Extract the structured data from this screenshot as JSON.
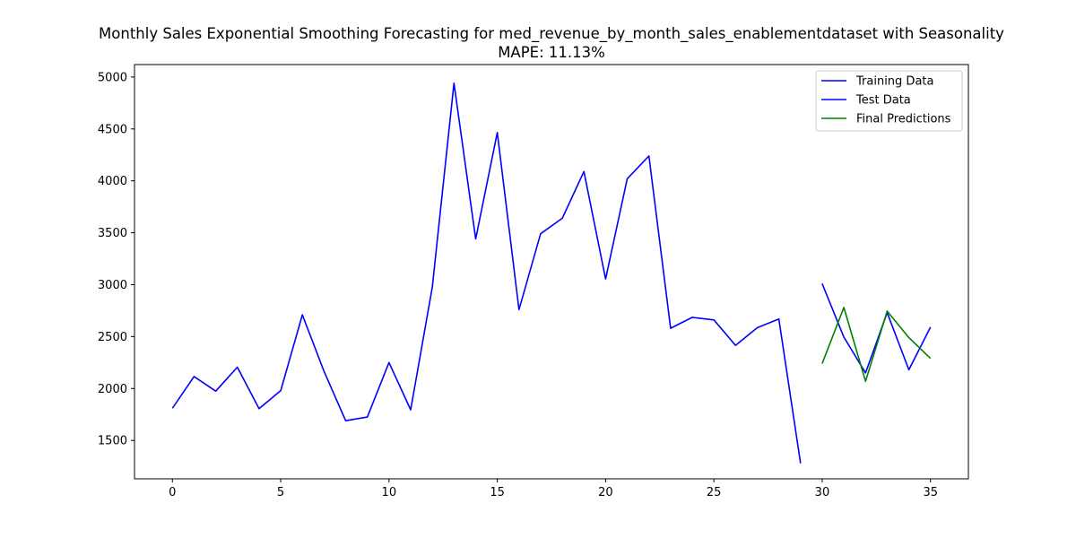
{
  "chart_data": {
    "type": "line",
    "title": "Monthly Sales Exponential Smoothing Forecasting for med_revenue_by_month_sales_enablementdataset with Seasonality",
    "subtitle": "MAPE: 11.13%",
    "xlabel": "",
    "ylabel": "",
    "xlim": [
      -1.75,
      36.75
    ],
    "ylim": [
      1130,
      5120
    ],
    "xticks": [
      0,
      5,
      10,
      15,
      20,
      25,
      30,
      35
    ],
    "yticks": [
      1500,
      2000,
      2500,
      3000,
      3500,
      4000,
      4500,
      5000
    ],
    "grid": false,
    "legend_position": "top-right",
    "series": [
      {
        "name": "Training Data",
        "color": "#0000ff",
        "x": [
          0,
          1,
          2,
          3,
          4,
          5,
          6,
          7,
          8,
          9,
          10,
          11,
          12,
          13,
          14,
          15,
          16,
          17,
          18,
          19,
          20,
          21,
          22,
          23,
          24,
          25,
          26,
          27,
          28,
          29
        ],
        "y": [
          1810,
          2115,
          1975,
          2205,
          1805,
          1980,
          2710,
          2165,
          1690,
          1725,
          2250,
          1795,
          2975,
          4940,
          3440,
          4465,
          2760,
          3490,
          3640,
          4090,
          3055,
          4020,
          4240,
          2580,
          2685,
          2660,
          2415,
          2585,
          2670,
          1280
        ]
      },
      {
        "name": "Test Data",
        "color": "#0000ff",
        "x": [
          30,
          31,
          32,
          33,
          34,
          35
        ],
        "y": [
          3010,
          2495,
          2150,
          2730,
          2180,
          2590
        ]
      },
      {
        "name": "Final Predictions",
        "color": "#008000",
        "x": [
          30,
          31,
          32,
          33,
          34,
          35
        ],
        "y": [
          2240,
          2780,
          2070,
          2745,
          2490,
          2290
        ]
      }
    ]
  }
}
